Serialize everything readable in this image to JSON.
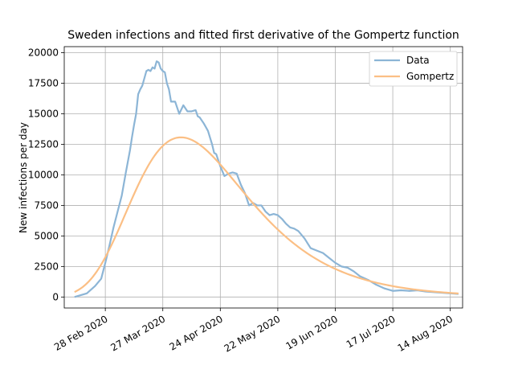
{
  "chart_data": {
    "type": "line",
    "title": "Sweden infections and fitted first derivative of the Gompertz function",
    "xlabel": "",
    "ylabel": "New infections per day",
    "xlim": [
      "2020-02-08",
      "2020-08-20"
    ],
    "ylim": [
      -900,
      20500
    ],
    "x_ticks": [
      "2020-02-28",
      "2020-03-27",
      "2020-04-24",
      "2020-05-22",
      "2020-06-19",
      "2020-07-17",
      "2020-08-14"
    ],
    "x_tick_labels": [
      "28 Feb 2020",
      "27 Mar 2020",
      "24 Apr 2020",
      "22 May 2020",
      "19 Jun 2020",
      "17 Jul 2020",
      "14 Aug 2020"
    ],
    "y_ticks": [
      0,
      2500,
      5000,
      7500,
      10000,
      12500,
      15000,
      17500,
      20000
    ],
    "grid": true,
    "legend_position": "top-right",
    "series": [
      {
        "name": "Data",
        "color": "#8cb5d6",
        "x": [
          "2020-02-13",
          "2020-02-16",
          "2020-02-19",
          "2020-02-23",
          "2020-02-26",
          "2020-02-28",
          "2020-03-01",
          "2020-03-03",
          "2020-03-05",
          "2020-03-07",
          "2020-03-09",
          "2020-03-11",
          "2020-03-12",
          "2020-03-13",
          "2020-03-14",
          "2020-03-15",
          "2020-03-16",
          "2020-03-17",
          "2020-03-18",
          "2020-03-19",
          "2020-03-20",
          "2020-03-21",
          "2020-03-22",
          "2020-03-23",
          "2020-03-24",
          "2020-03-25",
          "2020-03-26",
          "2020-03-27",
          "2020-03-28",
          "2020-03-29",
          "2020-03-30",
          "2020-03-31",
          "2020-04-02",
          "2020-04-04",
          "2020-04-06",
          "2020-04-08",
          "2020-04-10",
          "2020-04-12",
          "2020-04-13",
          "2020-04-14",
          "2020-04-16",
          "2020-04-18",
          "2020-04-20",
          "2020-04-21",
          "2020-04-22",
          "2020-04-24",
          "2020-04-26",
          "2020-04-28",
          "2020-04-30",
          "2020-05-02",
          "2020-05-04",
          "2020-05-06",
          "2020-05-08",
          "2020-05-10",
          "2020-05-12",
          "2020-05-14",
          "2020-05-16",
          "2020-05-18",
          "2020-05-20",
          "2020-05-22",
          "2020-05-24",
          "2020-05-26",
          "2020-05-28",
          "2020-05-30",
          "2020-06-01",
          "2020-06-04",
          "2020-06-07",
          "2020-06-10",
          "2020-06-13",
          "2020-06-16",
          "2020-06-19",
          "2020-06-22",
          "2020-06-25",
          "2020-06-28",
          "2020-07-01",
          "2020-07-05",
          "2020-07-09",
          "2020-07-13",
          "2020-07-17",
          "2020-07-21",
          "2020-07-25",
          "2020-07-29",
          "2020-08-02",
          "2020-08-06",
          "2020-08-10",
          "2020-08-14",
          "2020-08-18"
        ],
        "values": [
          0,
          150,
          300,
          900,
          1500,
          2800,
          4200,
          5700,
          7000,
          8300,
          10200,
          12000,
          13100,
          14100,
          15000,
          16600,
          17000,
          17300,
          17900,
          18500,
          18600,
          18500,
          18800,
          18700,
          19300,
          19200,
          18700,
          18500,
          18400,
          17500,
          17000,
          16000,
          16000,
          15000,
          15700,
          15200,
          15200,
          15300,
          14800,
          14700,
          14200,
          13600,
          12500,
          11800,
          11700,
          10700,
          9900,
          10100,
          10200,
          10100,
          9200,
          8500,
          7500,
          7700,
          7500,
          7500,
          7000,
          6700,
          6800,
          6700,
          6400,
          6000,
          5700,
          5600,
          5400,
          4800,
          4000,
          3800,
          3600,
          3200,
          2800,
          2500,
          2400,
          2100,
          1700,
          1400,
          1000,
          700,
          500,
          550,
          500,
          550,
          450,
          400,
          350,
          300,
          250
        ]
      },
      {
        "name": "Gompertz",
        "color": "#fbbf85",
        "params": {
          "a": 1001000,
          "b": 6.3,
          "c": 0.0355,
          "x0": "2020-02-13"
        }
      }
    ]
  }
}
